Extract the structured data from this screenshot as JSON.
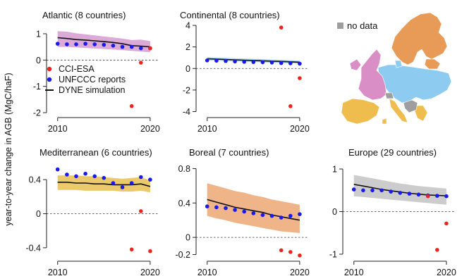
{
  "figure": {
    "ylabel": "year-to-year change in AGB (MgC/haF)",
    "legend": {
      "entries": [
        {
          "label": "CCI-ESA",
          "color": "#e8251e",
          "marker": "dot"
        },
        {
          "label": "UNFCCC reports",
          "color": "#1a1aeb",
          "marker": "dot"
        },
        {
          "label": "DYNE simulation",
          "color": "#111111",
          "marker": "line"
        }
      ],
      "placement": "inside Atlantic panel, lower left"
    },
    "map": {
      "legend_label": "no data",
      "legend_color": "#9e9e9e",
      "region_colors": {
        "Atlantic": "#d98fc6",
        "Continental": "#8ecbf0",
        "Mediterranean": "#eebd4d",
        "Boreal": "#e89b56",
        "no data": "#9e9e9e"
      }
    }
  },
  "chart_data": [
    {
      "type": "line",
      "title": "Atlantic (8 countries)",
      "ylim": [
        -2,
        1.4
      ],
      "yticks": [
        "1",
        "0",
        "-1",
        "-2"
      ],
      "ytick_values": [
        1,
        0,
        -1,
        -2
      ],
      "xticks": [
        "2010",
        "2020"
      ],
      "xtick_values": [
        2010,
        2020
      ],
      "band_color": "#dcaad6",
      "series": [
        {
          "name": "UNFCCC reports",
          "style": "dot",
          "color": "#1a1aeb",
          "x": [
            2010,
            2011,
            2012,
            2013,
            2014,
            2015,
            2016,
            2017,
            2018,
            2019,
            2020
          ],
          "y": [
            0.62,
            0.6,
            0.6,
            0.62,
            0.6,
            0.58,
            0.55,
            0.5,
            0.5,
            0.45,
            0.45
          ]
        },
        {
          "name": "CCI-ESA",
          "style": "dot",
          "color": "#e8251e",
          "x": [
            2018,
            2019,
            2020
          ],
          "y": [
            -1.75,
            -0.1,
            0.45
          ]
        },
        {
          "name": "DYNE simulation",
          "style": "line",
          "color": "#111111",
          "x": [
            2010,
            2011,
            2012,
            2013,
            2014,
            2015,
            2016,
            2017,
            2018,
            2019,
            2020
          ],
          "y": [
            0.85,
            0.82,
            0.78,
            0.76,
            0.73,
            0.7,
            0.67,
            0.62,
            0.55,
            0.53,
            0.5
          ],
          "band_low": [
            0.5,
            0.5,
            0.48,
            0.46,
            0.44,
            0.42,
            0.4,
            0.38,
            0.35,
            0.32,
            0.3
          ],
          "band_high": [
            1.1,
            1.08,
            1.02,
            0.98,
            0.94,
            0.9,
            0.86,
            0.82,
            0.76,
            0.78,
            0.72
          ]
        }
      ]
    },
    {
      "type": "line",
      "title": "Continental (8 countries)",
      "ylim": [
        -4.1,
        4.2
      ],
      "yticks": [
        "4",
        "2",
        "0",
        "-2",
        "-4"
      ],
      "ytick_values": [
        4,
        2,
        0,
        -2,
        -4
      ],
      "xticks": [
        "2010",
        "2020"
      ],
      "xtick_values": [
        2010,
        2020
      ],
      "band_color": "#a6d6ee",
      "series": [
        {
          "name": "UNFCCC reports",
          "style": "dot",
          "color": "#1a1aeb",
          "x": [
            2010,
            2011,
            2012,
            2013,
            2014,
            2015,
            2016,
            2017,
            2018,
            2019,
            2020
          ],
          "y": [
            0.75,
            0.72,
            0.7,
            0.65,
            0.62,
            0.6,
            0.58,
            0.55,
            0.5,
            0.48,
            0.45
          ]
        },
        {
          "name": "CCI-ESA",
          "style": "dot",
          "color": "#e8251e",
          "x": [
            2018,
            2019,
            2020
          ],
          "y": [
            3.8,
            -3.5,
            -0.9
          ]
        },
        {
          "name": "DYNE simulation",
          "style": "line",
          "color": "#111111",
          "x": [
            2010,
            2011,
            2012,
            2013,
            2014,
            2015,
            2016,
            2017,
            2018,
            2019,
            2020
          ],
          "y": [
            0.9,
            0.87,
            0.83,
            0.8,
            0.77,
            0.74,
            0.71,
            0.68,
            0.65,
            0.62,
            0.58
          ],
          "band_low": [
            0.75,
            0.72,
            0.69,
            0.66,
            0.63,
            0.6,
            0.57,
            0.54,
            0.51,
            0.48,
            0.45
          ],
          "band_high": [
            1.05,
            1.02,
            0.98,
            0.95,
            0.92,
            0.89,
            0.86,
            0.83,
            0.8,
            0.77,
            0.72
          ]
        }
      ]
    },
    {
      "type": "line",
      "title": "Mediterranean (6 countries)",
      "ylim": [
        -0.5,
        0.55
      ],
      "yticks": [
        "0.4",
        "0",
        "-0.4"
      ],
      "ytick_values": [
        0.4,
        0,
        -0.4
      ],
      "xticks": [
        "2010",
        "2020"
      ],
      "xtick_values": [
        2010,
        2020
      ],
      "band_color": "#ecc96a",
      "series": [
        {
          "name": "UNFCCC reports",
          "style": "dot",
          "color": "#1a1aeb",
          "x": [
            2010,
            2011,
            2012,
            2013,
            2014,
            2015,
            2016,
            2017,
            2018,
            2019,
            2020
          ],
          "y": [
            0.52,
            0.46,
            0.44,
            0.47,
            0.44,
            0.42,
            0.36,
            0.31,
            0.36,
            0.43,
            0.4
          ]
        },
        {
          "name": "CCI-ESA",
          "style": "dot",
          "color": "#e8251e",
          "x": [
            2018,
            2019,
            2020
          ],
          "y": [
            -0.42,
            0.03,
            -0.44
          ]
        },
        {
          "name": "DYNE simulation",
          "style": "line",
          "color": "#111111",
          "x": [
            2010,
            2011,
            2012,
            2013,
            2014,
            2015,
            2016,
            2017,
            2018,
            2019,
            2020
          ],
          "y": [
            0.37,
            0.37,
            0.36,
            0.36,
            0.35,
            0.35,
            0.34,
            0.34,
            0.34,
            0.35,
            0.32
          ],
          "band_low": [
            0.28,
            0.28,
            0.28,
            0.27,
            0.27,
            0.27,
            0.27,
            0.26,
            0.26,
            0.27,
            0.25
          ],
          "band_high": [
            0.45,
            0.45,
            0.45,
            0.44,
            0.44,
            0.43,
            0.42,
            0.41,
            0.42,
            0.43,
            0.39
          ]
        }
      ]
    },
    {
      "type": "line",
      "title": "Boreal (7 countries)",
      "ylim": [
        -0.22,
        0.82
      ],
      "yticks": [
        "0.8",
        "0.4",
        "0",
        "-0.2"
      ],
      "ytick_values": [
        0.8,
        0.4,
        0,
        -0.2
      ],
      "xticks": [
        "2010",
        "2020"
      ],
      "xtick_values": [
        2010,
        2020
      ],
      "band_color": "#efb487",
      "series": [
        {
          "name": "UNFCCC reports",
          "style": "dot",
          "color": "#1a1aeb",
          "x": [
            2010,
            2011,
            2012,
            2013,
            2014,
            2015,
            2016,
            2017,
            2018,
            2019,
            2020
          ],
          "y": [
            0.36,
            0.35,
            0.34,
            0.32,
            0.3,
            0.28,
            0.26,
            0.25,
            0.23,
            0.25,
            0.27
          ]
        },
        {
          "name": "CCI-ESA",
          "style": "dot",
          "color": "#e8251e",
          "x": [
            2018,
            2019,
            2020
          ],
          "y": [
            -0.15,
            -0.17,
            -0.21
          ]
        },
        {
          "name": "DYNE simulation",
          "style": "line",
          "color": "#111111",
          "x": [
            2010,
            2011,
            2012,
            2013,
            2014,
            2015,
            2016,
            2017,
            2018,
            2019,
            2020
          ],
          "y": [
            0.44,
            0.41,
            0.38,
            0.35,
            0.33,
            0.31,
            0.29,
            0.26,
            0.24,
            0.22,
            0.2
          ],
          "band_low": [
            0.25,
            0.22,
            0.2,
            0.17,
            0.15,
            0.13,
            0.11,
            0.09,
            0.07,
            0.06,
            0.05
          ],
          "band_high": [
            0.63,
            0.6,
            0.57,
            0.54,
            0.52,
            0.49,
            0.47,
            0.44,
            0.42,
            0.4,
            0.38
          ]
        }
      ]
    },
    {
      "type": "line",
      "title": "Europe (29 countries)",
      "ylim": [
        -1.05,
        1.05
      ],
      "yticks": [
        "1",
        "0",
        "-1"
      ],
      "ytick_values": [
        1,
        0,
        -1
      ],
      "xticks": [
        "2010",
        "2020"
      ],
      "xtick_values": [
        2010,
        2020
      ],
      "band_color": "#cccccc",
      "series": [
        {
          "name": "UNFCCC reports",
          "style": "dot",
          "color": "#1a1aeb",
          "x": [
            2010,
            2011,
            2012,
            2013,
            2014,
            2015,
            2016,
            2017,
            2018,
            2019,
            2020
          ],
          "y": [
            0.52,
            0.5,
            0.5,
            0.5,
            0.47,
            0.44,
            0.42,
            0.4,
            0.38,
            0.37,
            0.36
          ]
        },
        {
          "name": "CCI-ESA",
          "style": "dot",
          "color": "#e8251e",
          "x": [
            2018,
            2019,
            2020
          ],
          "y": [
            0.36,
            -0.9,
            -0.28
          ]
        },
        {
          "name": "DYNE simulation",
          "style": "line",
          "color": "#111111",
          "x": [
            2010,
            2011,
            2012,
            2013,
            2014,
            2015,
            2016,
            2017,
            2018,
            2019,
            2020
          ],
          "y": [
            0.64,
            0.6,
            0.56,
            0.52,
            0.49,
            0.46,
            0.43,
            0.41,
            0.39,
            0.38,
            0.37
          ],
          "band_low": [
            0.36,
            0.34,
            0.32,
            0.3,
            0.28,
            0.26,
            0.24,
            0.22,
            0.2,
            0.18,
            0.16
          ],
          "band_high": [
            0.86,
            0.82,
            0.78,
            0.74,
            0.7,
            0.66,
            0.63,
            0.6,
            0.58,
            0.56,
            0.54
          ]
        }
      ]
    }
  ]
}
